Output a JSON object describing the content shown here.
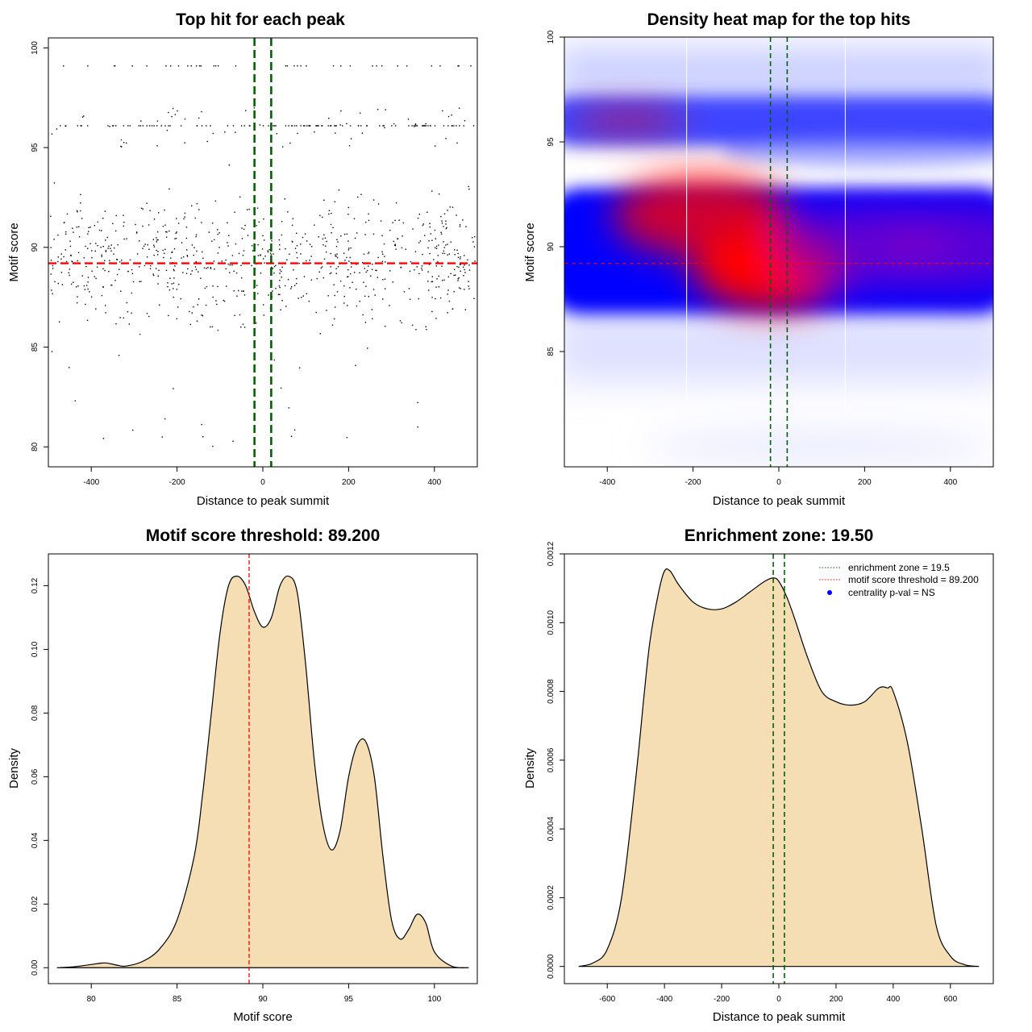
{
  "colors": {
    "threshold_line": "#ff0000",
    "zone_line": "#006400",
    "density_fill": "#f5deb3",
    "heat_low": "#ffffff",
    "heat_mid": "#0000ff",
    "heat_high": "#ff0000",
    "points": "#000000",
    "legend_dot": "#0000ff"
  },
  "chart_data": [
    {
      "type": "scatter",
      "title": "Top hit for each peak",
      "xlabel": "Distance to peak summit",
      "ylabel": "Motif score",
      "xlim": [
        -500,
        500
      ],
      "ylim": [
        79,
        100.5
      ],
      "xticks": [
        -400,
        -200,
        0,
        200,
        400
      ],
      "yticks": [
        80,
        85,
        90,
        95,
        100
      ],
      "hline": 89.2,
      "vlines": [
        -19.5,
        19.5
      ],
      "point_count": 1000,
      "grid": false
    },
    {
      "type": "heatmap",
      "title": "Density heat map for the top hits",
      "xlabel": "Distance to peak summit",
      "ylabel": "Motif score",
      "xlim": [
        -500,
        500
      ],
      "ylim": [
        79.5,
        100
      ],
      "xticks": [
        -400,
        -200,
        0,
        200,
        400
      ],
      "yticks": [
        85,
        90,
        95,
        100
      ],
      "hline": 89.2,
      "vlines": [
        -19.5,
        19.5
      ],
      "white_separators": [
        -215,
        155
      ],
      "density_blobs": [
        {
          "x": -350,
          "y": 96.0,
          "level": 0.85
        },
        {
          "x": -180,
          "y": 91.5,
          "level": 0.8
        },
        {
          "x": -20,
          "y": 89.0,
          "level": 1.0
        },
        {
          "x": 200,
          "y": 90.0,
          "level": 0.7
        },
        {
          "x": 420,
          "y": 90.0,
          "level": 0.7
        }
      ],
      "grid": false
    },
    {
      "type": "area",
      "title": "Motif score threshold: 89.200",
      "xlabel": "Motif score",
      "ylabel": "Density",
      "xlim": [
        77.5,
        102.5
      ],
      "ylim": [
        -0.005,
        0.13
      ],
      "xticks": [
        80,
        85,
        90,
        95,
        100
      ],
      "yticks": [
        "0.00",
        "0.02",
        "0.04",
        "0.06",
        "0.08",
        "0.10",
        "0.12"
      ],
      "vline": 89.2,
      "x": [
        78,
        79,
        80,
        80.8,
        81.5,
        82,
        83,
        84,
        85,
        86,
        86.5,
        87,
        87.5,
        88,
        88.5,
        89,
        89.5,
        90,
        90.5,
        91,
        91.5,
        92,
        92.5,
        93,
        93.5,
        94,
        94.5,
        95,
        95.5,
        96,
        96.5,
        97,
        97.5,
        98,
        98.5,
        99,
        99.5,
        100,
        101,
        102
      ],
      "y": [
        0.0,
        0.0003,
        0.001,
        0.0015,
        0.0008,
        0.0005,
        0.002,
        0.006,
        0.015,
        0.035,
        0.055,
        0.08,
        0.105,
        0.12,
        0.123,
        0.12,
        0.112,
        0.107,
        0.11,
        0.12,
        0.123,
        0.118,
        0.095,
        0.065,
        0.045,
        0.037,
        0.043,
        0.06,
        0.07,
        0.071,
        0.06,
        0.035,
        0.015,
        0.009,
        0.012,
        0.0168,
        0.014,
        0.005,
        0.0005,
        0.0
      ]
    },
    {
      "type": "area",
      "title": "Enrichment zone: 19.50",
      "xlabel": "Distance to peak summit",
      "ylabel": "Density",
      "xlim": [
        -750,
        750
      ],
      "ylim": [
        -5e-05,
        0.0012
      ],
      "xticks": [
        -600,
        -400,
        -200,
        0,
        200,
        400,
        600
      ],
      "yticks": [
        "0.0000",
        "0.0002",
        "0.0004",
        "0.0006",
        "0.0008",
        "0.0010",
        "0.0012"
      ],
      "vlines": [
        -19.5,
        19.5
      ],
      "x": [
        -700,
        -650,
        -600,
        -550,
        -500,
        -470,
        -450,
        -420,
        -400,
        -380,
        -350,
        -300,
        -250,
        -200,
        -150,
        -100,
        -50,
        -20,
        0,
        30,
        60,
        100,
        150,
        200,
        250,
        300,
        350,
        380,
        400,
        450,
        500,
        550,
        600,
        650,
        700
      ],
      "y": [
        0.0,
        1e-05,
        5e-05,
        0.0002,
        0.00055,
        0.0008,
        0.00095,
        0.00109,
        0.00115,
        0.00115,
        0.00111,
        0.00106,
        0.00104,
        0.00104,
        0.00106,
        0.00109,
        0.00112,
        0.00113,
        0.00112,
        0.00107,
        0.001,
        0.0009,
        0.0008,
        0.00077,
        0.00076,
        0.00077,
        0.00081,
        0.00081,
        0.0008,
        0.00065,
        0.0004,
        0.00012,
        3e-05,
        5e-06,
        0.0
      ],
      "legend": {
        "placement": "top-right",
        "entries": [
          {
            "label": "enrichment zone = 19.5",
            "style": "dotted",
            "color": "#006400"
          },
          {
            "label": "motif score threshold = 89.200",
            "style": "dotted",
            "color": "#ff0000"
          },
          {
            "label": "centrality p-val = NS",
            "style": "dot",
            "color": "#0000ff"
          }
        ]
      }
    }
  ]
}
